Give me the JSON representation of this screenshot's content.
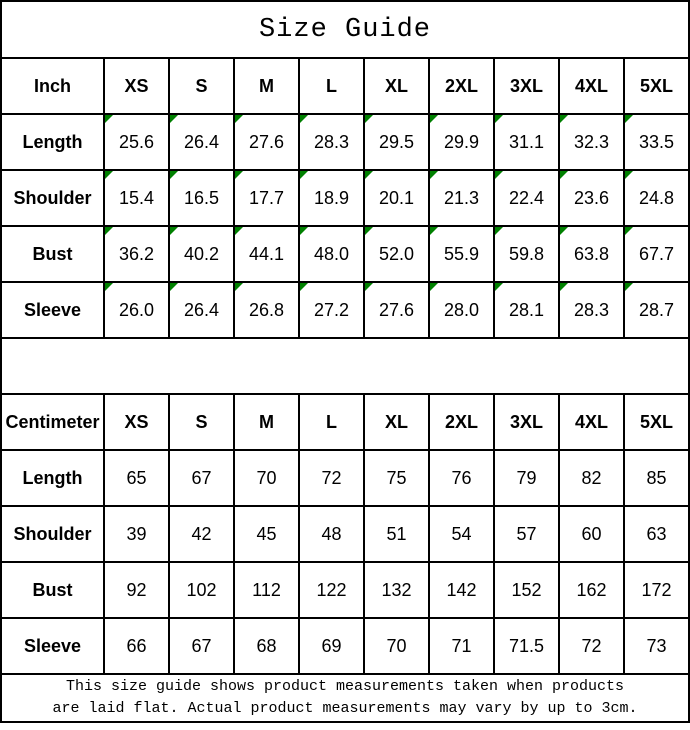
{
  "title": "Size Guide",
  "sizes": [
    "XS",
    "S",
    "M",
    "L",
    "XL",
    "2XL",
    "3XL",
    "4XL",
    "5XL"
  ],
  "tables": [
    {
      "unit_label": "Inch",
      "flagged": true,
      "rows": [
        {
          "label": "Length",
          "values": [
            "25.6",
            "26.4",
            "27.6",
            "28.3",
            "29.5",
            "29.9",
            "31.1",
            "32.3",
            "33.5"
          ]
        },
        {
          "label": "Shoulder",
          "values": [
            "15.4",
            "16.5",
            "17.7",
            "18.9",
            "20.1",
            "21.3",
            "22.4",
            "23.6",
            "24.8"
          ]
        },
        {
          "label": "Bust",
          "values": [
            "36.2",
            "40.2",
            "44.1",
            "48.0",
            "52.0",
            "55.9",
            "59.8",
            "63.8",
            "67.7"
          ]
        },
        {
          "label": "Sleeve",
          "values": [
            "26.0",
            "26.4",
            "26.8",
            "27.2",
            "27.6",
            "28.0",
            "28.1",
            "28.3",
            "28.7"
          ]
        }
      ]
    },
    {
      "unit_label": "Centimeter",
      "flagged": false,
      "rows": [
        {
          "label": "Length",
          "values": [
            "65",
            "67",
            "70",
            "72",
            "75",
            "76",
            "79",
            "82",
            "85"
          ]
        },
        {
          "label": "Shoulder",
          "values": [
            "39",
            "42",
            "45",
            "48",
            "51",
            "54",
            "57",
            "60",
            "63"
          ]
        },
        {
          "label": "Bust",
          "values": [
            "92",
            "102",
            "112",
            "122",
            "132",
            "142",
            "152",
            "162",
            "172"
          ]
        },
        {
          "label": "Sleeve",
          "values": [
            "66",
            "67",
            "68",
            "69",
            "70",
            "71",
            "71.5",
            "72",
            "73"
          ]
        }
      ]
    }
  ],
  "footer": {
    "line1": "This size guide shows product measurements taken when products",
    "line2": "are laid flat. Actual product measurements may vary by up to 3cm."
  },
  "colors": {
    "border": "#000000",
    "text": "#000000",
    "flag_green": "#008000"
  }
}
